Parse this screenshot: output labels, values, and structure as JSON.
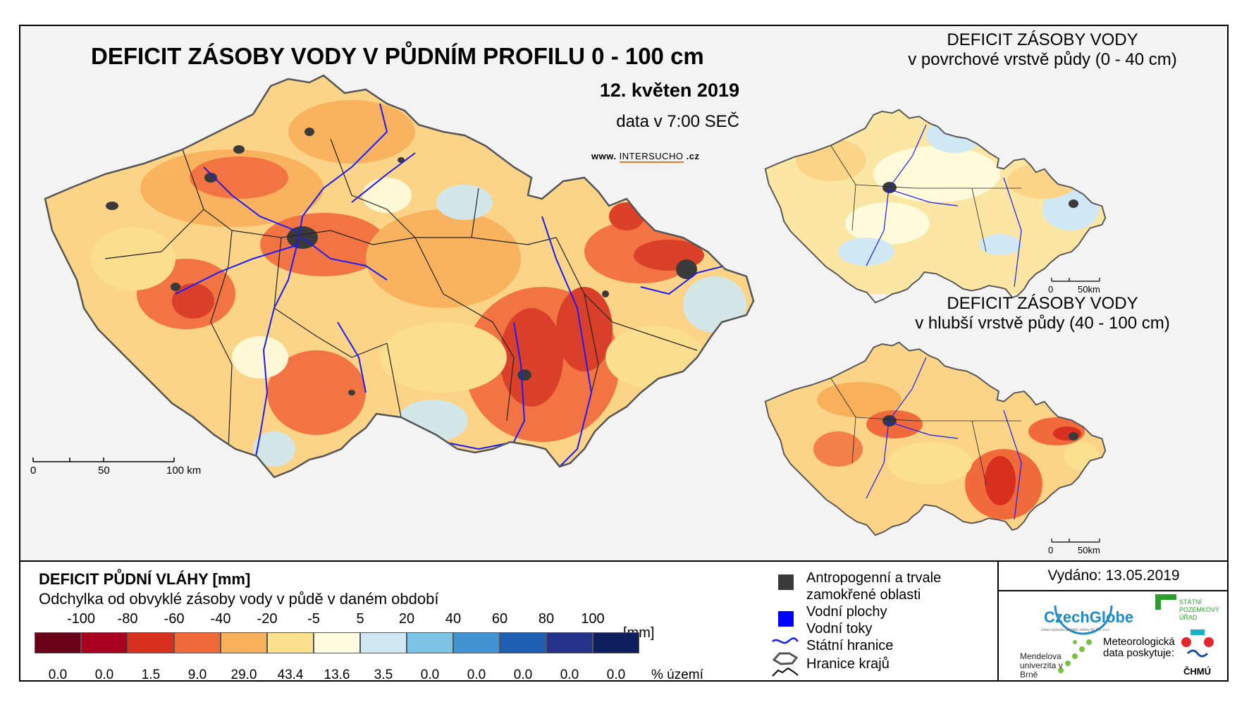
{
  "main": {
    "title": "DEFICIT ZÁSOBY VODY V PŮDNÍM PROFILU 0 - 100 cm",
    "date": "12. květen 2019",
    "data_time": "data v 7:00 SEČ",
    "site_prefix": "www. ",
    "site_brand": "INTERSUCHO",
    "site_suffix": " .cz",
    "scale_labels": [
      "0",
      "50",
      "100 km"
    ]
  },
  "inset_top": {
    "title_line1": "DEFICIT ZÁSOBY VODY",
    "title_line2": "v povrchové vrstvě půdy (0 - 40 cm)",
    "scale_labels": [
      "0",
      "50km"
    ]
  },
  "inset_bottom": {
    "title_line1": "DEFICIT ZÁSOBY VODY",
    "title_line2": "v hlubší vrstvě půdy (40 - 100 cm)",
    "scale_labels": [
      "0",
      "50km"
    ]
  },
  "legend": {
    "title": "DEFICIT PŮDNÍ VLÁHY [mm]",
    "subtitle": "Odchylka od obvyklé zásoby vody v půdě v daném období",
    "bin_labels": [
      "-100",
      "-80",
      "-60",
      "-40",
      "-20",
      "-5",
      "5",
      "20",
      "40",
      "60",
      "80",
      "100"
    ],
    "unit": "[mm]",
    "colors": [
      "#6b0019",
      "#a8001e",
      "#d7301f",
      "#f16a3b",
      "#f9b05a",
      "#fbe08f",
      "#fffce0",
      "#cfe8f3",
      "#7cc3e5",
      "#4293d1",
      "#1f5fb3",
      "#25328a",
      "#0d1f5c"
    ],
    "percentages": [
      "0.0",
      "0.0",
      "1.5",
      "9.0",
      "29.0",
      "43.4",
      "13.6",
      "3.5",
      "0.0",
      "0.0",
      "0.0",
      "0.0",
      "0.0"
    ],
    "percent_unit": "% území"
  },
  "symbols": {
    "anthropogenic_line1": "Antropogenní a trvale",
    "anthropogenic_line2": "zamokřené oblasti",
    "water_bodies": "Vodní plochy",
    "rivers": "Vodní toky",
    "state_border": "Státní hranice",
    "region_border": "Hranice krajů",
    "anthropogenic_color": "#3a3a3a",
    "water_body_color": "#0000ff",
    "river_color": "#1a1aff"
  },
  "issued": "Vydáno: 13.05.2019",
  "logos": {
    "czechglobe": "CzechGlobe",
    "czechglobe_sub": "Ústav výzkumu globální změny AV ČR, v.v.i.",
    "spu": "STÁTNÍ POZEMKOVÝ ÚŘAD",
    "mendelu": "Mendelova univerzita v Brně",
    "met_data": "Meteorologická data poskytuje:",
    "chmu": "ČHMÚ"
  }
}
